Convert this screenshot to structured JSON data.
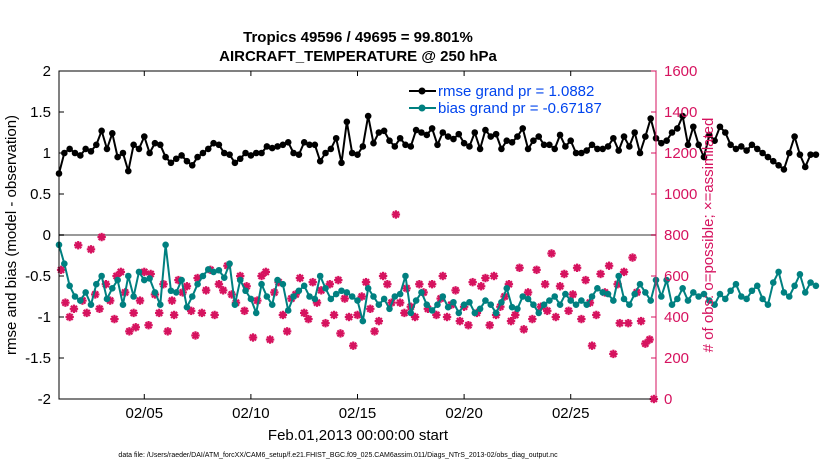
{
  "chart_data": {
    "type": "line",
    "title_line1": "Tropics 49596 / 49695 = 99.801%",
    "title_line2": "AIRCRAFT_TEMPERATURE @ 250 hPa",
    "xlabel": "Feb.01,2013 00:00:00 start",
    "ylabel_left": "rmse and bias (model - observation)",
    "ylabel_right": "# of obs: o=possible; ×=assimilated",
    "xlim": [
      1,
      29
    ],
    "ylim_left": [
      -2,
      2
    ],
    "ylim_right": [
      0,
      1600
    ],
    "x_ticks": [
      {
        "value": 5,
        "label": "02/05"
      },
      {
        "value": 10,
        "label": "02/10"
      },
      {
        "value": 15,
        "label": "02/15"
      },
      {
        "value": 20,
        "label": "02/20"
      },
      {
        "value": 25,
        "label": "02/25"
      }
    ],
    "y_ticks_left": [
      {
        "value": 2,
        "label": "2"
      },
      {
        "value": 1.5,
        "label": "1.5"
      },
      {
        "value": 1,
        "label": "1"
      },
      {
        "value": 0.5,
        "label": "0.5"
      },
      {
        "value": 0,
        "label": "0"
      },
      {
        "value": -0.5,
        "label": "-0.5"
      },
      {
        "value": -1,
        "label": "-1"
      },
      {
        "value": -1.5,
        "label": "-1.5"
      },
      {
        "value": -2,
        "label": "-2"
      }
    ],
    "y_ticks_right": [
      {
        "value": 1600,
        "label": "1600"
      },
      {
        "value": 1400,
        "label": "1400"
      },
      {
        "value": 1200,
        "label": "1200"
      },
      {
        "value": 1000,
        "label": "1000"
      },
      {
        "value": 800,
        "label": "800"
      },
      {
        "value": 600,
        "label": "600"
      },
      {
        "value": 400,
        "label": "400"
      },
      {
        "value": 200,
        "label": "200"
      },
      {
        "value": 0,
        "label": "0"
      }
    ],
    "legend": [
      {
        "label": "rmse grand pr = 1.0882",
        "color": "#000000",
        "text_color": "#0044ee"
      },
      {
        "label": "bias grand pr = -0.67187",
        "color": "#008080",
        "text_color": "#0044ee"
      }
    ],
    "colors": {
      "rmse": "#000000",
      "bias": "#008080",
      "obs": "#d6135f",
      "zero_line": "#999999"
    },
    "x_start": 1.0,
    "x_step": 0.25,
    "series": [
      {
        "name": "rmse",
        "axis": "left",
        "values": [
          0.75,
          1.0,
          1.05,
          1.0,
          0.97,
          1.05,
          1.02,
          1.1,
          1.27,
          1.05,
          1.24,
          0.95,
          1.0,
          0.78,
          1.1,
          1.05,
          1.2,
          1.0,
          1.12,
          1.1,
          0.95,
          0.88,
          0.93,
          0.97,
          0.9,
          0.85,
          0.95,
          1.0,
          1.05,
          1.12,
          1.1,
          1.0,
          0.98,
          0.88,
          0.93,
          1.0,
          0.97,
          1.0,
          1.0,
          1.08,
          1.06,
          1.08,
          1.1,
          1.13,
          1.0,
          0.98,
          1.13,
          1.1,
          1.1,
          0.9,
          1.0,
          1.05,
          1.18,
          0.88,
          1.38,
          1.0,
          0.98,
          1.08,
          1.45,
          1.12,
          1.25,
          1.27,
          1.15,
          1.08,
          1.18,
          1.1,
          1.08,
          1.28,
          1.25,
          1.22,
          1.3,
          1.1,
          1.25,
          1.2,
          1.17,
          1.23,
          1.12,
          1.08,
          1.25,
          1.05,
          1.28,
          1.2,
          1.23,
          1.05,
          1.15,
          1.13,
          1.2,
          1.3,
          1.05,
          1.15,
          1.2,
          1.1,
          1.1,
          1.05,
          1.22,
          1.08,
          1.15,
          1.0,
          1.0,
          1.03,
          1.1,
          1.05,
          1.05,
          1.08,
          1.18,
          1.03,
          1.2,
          1.08,
          1.25,
          1.0,
          1.2,
          1.42,
          1.18,
          1.12,
          1.15,
          1.25,
          1.3,
          1.45,
          1.1,
          1.32,
          1.1,
          0.95,
          1.22,
          1.15,
          1.32,
          1.25,
          1.1,
          1.05,
          1.08,
          1.03,
          1.1,
          1.05,
          1.0,
          0.95,
          0.9,
          0.85,
          0.8,
          1.0,
          1.2,
          0.98,
          0.83,
          0.98,
          0.98
        ]
      },
      {
        "name": "bias",
        "axis": "left",
        "values": [
          -0.12,
          -0.35,
          -0.62,
          -0.75,
          -0.8,
          -0.7,
          -0.85,
          -0.6,
          -0.5,
          -0.78,
          -0.65,
          -0.55,
          -0.85,
          -0.5,
          -0.75,
          -0.45,
          -0.55,
          -0.53,
          -0.7,
          -0.85,
          -0.12,
          -0.68,
          -0.7,
          -0.55,
          -0.88,
          -0.75,
          -0.6,
          -0.5,
          -0.42,
          -0.45,
          -0.43,
          -0.52,
          -0.35,
          -0.85,
          -0.55,
          -0.68,
          -0.78,
          -0.95,
          -0.6,
          -0.75,
          -0.85,
          -0.55,
          -0.6,
          -0.92,
          -0.75,
          -0.68,
          -0.62,
          -0.75,
          -0.78,
          -0.5,
          -0.65,
          -0.78,
          -0.72,
          -0.68,
          -0.7,
          -0.75,
          -0.8,
          -1.05,
          -0.65,
          -0.75,
          -0.85,
          -0.78,
          -0.9,
          -0.75,
          -0.72,
          -0.5,
          -0.95,
          -0.8,
          -0.7,
          -0.85,
          -0.92,
          -0.85,
          -0.75,
          -0.88,
          -0.82,
          -0.95,
          -0.85,
          -0.82,
          -0.95,
          -0.9,
          -0.8,
          -0.85,
          -0.95,
          -0.82,
          -0.65,
          -0.88,
          -0.9,
          -0.75,
          -0.78,
          -0.85,
          -0.95,
          -0.85,
          -0.8,
          -0.75,
          -0.85,
          -0.72,
          -0.8,
          -0.85,
          -0.8,
          -0.85,
          -0.75,
          -0.65,
          -0.7,
          -0.72,
          -0.8,
          -0.5,
          -0.78,
          -0.85,
          -0.72,
          -0.6,
          -0.7,
          -0.8,
          -0.55,
          -0.75,
          -0.55,
          -0.85,
          -0.78,
          -0.65,
          -0.8,
          -0.7,
          -0.75,
          -0.72,
          -0.8,
          -0.85,
          -0.72,
          -0.78,
          -0.68,
          -0.6,
          -0.75,
          -0.78,
          -0.68,
          -0.62,
          -0.78,
          -0.85,
          -0.58,
          -0.45,
          -0.7,
          -0.75,
          -0.62,
          -0.48,
          -0.7,
          -0.58,
          -0.62
        ]
      },
      {
        "name": "assimilated",
        "axis": "right",
        "points": [
          [
            1.1,
            630
          ],
          [
            1.3,
            470
          ],
          [
            1.5,
            400
          ],
          [
            1.7,
            440
          ],
          [
            1.9,
            750
          ],
          [
            2.1,
            480
          ],
          [
            2.3,
            420
          ],
          [
            2.5,
            730
          ],
          [
            2.7,
            510
          ],
          [
            2.9,
            440
          ],
          [
            3.0,
            790
          ],
          [
            3.2,
            560
          ],
          [
            3.4,
            480
          ],
          [
            3.6,
            390
          ],
          [
            3.7,
            600
          ],
          [
            3.9,
            620
          ],
          [
            4.1,
            520
          ],
          [
            4.3,
            330
          ],
          [
            4.5,
            420
          ],
          [
            4.6,
            350
          ],
          [
            4.8,
            480
          ],
          [
            5.0,
            620
          ],
          [
            5.2,
            360
          ],
          [
            5.3,
            610
          ],
          [
            5.5,
            510
          ],
          [
            5.7,
            420
          ],
          [
            5.9,
            560
          ],
          [
            6.1,
            330
          ],
          [
            6.3,
            480
          ],
          [
            6.4,
            410
          ],
          [
            6.6,
            580
          ],
          [
            6.8,
            520
          ],
          [
            7.0,
            550
          ],
          [
            7.2,
            430
          ],
          [
            7.4,
            310
          ],
          [
            7.5,
            590
          ],
          [
            7.7,
            420
          ],
          [
            7.9,
            530
          ],
          [
            8.1,
            630
          ],
          [
            8.3,
            410
          ],
          [
            8.5,
            560
          ],
          [
            8.7,
            530
          ],
          [
            8.9,
            650
          ],
          [
            9.1,
            510
          ],
          [
            9.3,
            470
          ],
          [
            9.5,
            600
          ],
          [
            9.7,
            430
          ],
          [
            9.8,
            550
          ],
          [
            10.1,
            300
          ],
          [
            10.3,
            480
          ],
          [
            10.5,
            600
          ],
          [
            10.7,
            620
          ],
          [
            10.9,
            290
          ],
          [
            11.1,
            520
          ],
          [
            11.3,
            570
          ],
          [
            11.5,
            410
          ],
          [
            11.7,
            330
          ],
          [
            11.9,
            490
          ],
          [
            12.1,
            510
          ],
          [
            12.3,
            590
          ],
          [
            12.5,
            420
          ],
          [
            12.7,
            390
          ],
          [
            12.9,
            570
          ],
          [
            13.1,
            470
          ],
          [
            13.3,
            530
          ],
          [
            13.5,
            370
          ],
          [
            13.7,
            560
          ],
          [
            13.9,
            410
          ],
          [
            14.1,
            580
          ],
          [
            14.2,
            320
          ],
          [
            14.4,
            490
          ],
          [
            14.6,
            400
          ],
          [
            14.8,
            260
          ],
          [
            15.0,
            410
          ],
          [
            15.2,
            500
          ],
          [
            15.4,
            570
          ],
          [
            15.6,
            440
          ],
          [
            15.8,
            330
          ],
          [
            16.0,
            380
          ],
          [
            16.2,
            600
          ],
          [
            16.4,
            560
          ],
          [
            16.6,
            470
          ],
          [
            16.8,
            900
          ],
          [
            17.0,
            470
          ],
          [
            17.2,
            420
          ],
          [
            17.3,
            540
          ],
          [
            17.5,
            450
          ],
          [
            17.7,
            400
          ],
          [
            17.9,
            560
          ],
          [
            18.1,
            520
          ],
          [
            18.3,
            440
          ],
          [
            18.5,
            560
          ],
          [
            18.7,
            410
          ],
          [
            18.9,
            490
          ],
          [
            19.0,
            600
          ],
          [
            19.2,
            400
          ],
          [
            19.4,
            460
          ],
          [
            19.6,
            530
          ],
          [
            19.8,
            380
          ],
          [
            20.0,
            450
          ],
          [
            20.2,
            360
          ],
          [
            20.4,
            570
          ],
          [
            20.6,
            420
          ],
          [
            20.8,
            550
          ],
          [
            21.0,
            590
          ],
          [
            21.2,
            360
          ],
          [
            21.4,
            600
          ],
          [
            21.5,
            410
          ],
          [
            21.7,
            450
          ],
          [
            21.9,
            500
          ],
          [
            22.1,
            560
          ],
          [
            22.2,
            380
          ],
          [
            22.4,
            410
          ],
          [
            22.6,
            640
          ],
          [
            22.8,
            340
          ],
          [
            23.0,
            520
          ],
          [
            23.2,
            390
          ],
          [
            23.4,
            630
          ],
          [
            23.6,
            450
          ],
          [
            23.8,
            560
          ],
          [
            23.9,
            430
          ],
          [
            24.1,
            710
          ],
          [
            24.3,
            400
          ],
          [
            24.5,
            550
          ],
          [
            24.7,
            610
          ],
          [
            24.9,
            430
          ],
          [
            25.1,
            510
          ],
          [
            25.3,
            640
          ],
          [
            25.5,
            390
          ],
          [
            25.7,
            580
          ],
          [
            25.9,
            470
          ],
          [
            26.0,
            260
          ],
          [
            26.2,
            410
          ],
          [
            26.4,
            610
          ],
          [
            26.6,
            520
          ],
          [
            26.8,
            650
          ],
          [
            27.0,
            220
          ],
          [
            27.2,
            560
          ],
          [
            27.3,
            370
          ],
          [
            27.5,
            620
          ],
          [
            27.7,
            370
          ],
          [
            27.9,
            690
          ],
          [
            28.1,
            520
          ],
          [
            28.3,
            380
          ],
          [
            28.5,
            270
          ],
          [
            28.7,
            290
          ],
          [
            28.9,
            0
          ]
        ]
      }
    ]
  },
  "footer": {
    "data_file": "data file: /Users/raeder/DAI/ATM_forcXX/CAM6_setup/f.e21.FHIST_BGC.f09_025.CAM6assim.011/Diags_NTrS_2013-02/obs_diag_output.nc"
  }
}
